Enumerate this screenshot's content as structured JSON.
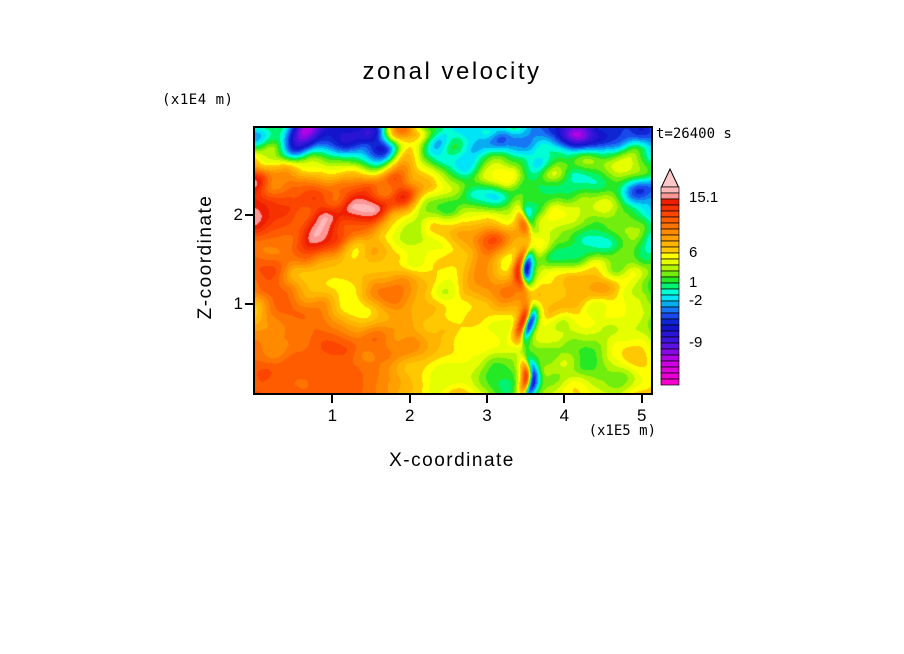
{
  "chart_data": {
    "type": "heatmap",
    "title": "zonal velocity",
    "annotation": "t=26400 s",
    "x_axis": {
      "label": "X-coordinate",
      "unit": "(x1E5 m)",
      "min": 0,
      "max": 5.12,
      "ticks": [
        1,
        2,
        3,
        4,
        5
      ]
    },
    "z_axis": {
      "label": "Z-coordinate",
      "unit": "(x1E4 m)",
      "min": 0,
      "max": 2.98,
      "ticks": [
        1,
        2
      ]
    },
    "colorbar": {
      "min": -16,
      "max": 17,
      "step": 1,
      "arrow": "up",
      "tick_labels": [
        {
          "value": 15.1,
          "label": "15.1"
        },
        {
          "value": 6,
          "label": "6"
        },
        {
          "value": 1,
          "label": "1"
        },
        {
          "value": -2,
          "label": "-2"
        },
        {
          "value": -9,
          "label": "-9"
        }
      ],
      "stops": [
        [
          -16,
          "#ff00c8"
        ],
        [
          -12,
          "#c800e6"
        ],
        [
          -9,
          "#4614e0"
        ],
        [
          -6,
          "#0a14c8"
        ],
        [
          -4,
          "#1e5af5"
        ],
        [
          -2,
          "#00c8f0"
        ],
        [
          -1,
          "#00ffff"
        ],
        [
          0,
          "#00ffaa"
        ],
        [
          1,
          "#00e632"
        ],
        [
          3,
          "#96f000"
        ],
        [
          4.5,
          "#e6ff00"
        ],
        [
          5.5,
          "#ffff00"
        ],
        [
          6.5,
          "#ffc800"
        ],
        [
          9,
          "#ff9600"
        ],
        [
          12,
          "#ff5000"
        ],
        [
          14.5,
          "#f01e00"
        ],
        [
          15.5,
          "#ff9696"
        ],
        [
          17,
          "#ffc8c8"
        ]
      ]
    },
    "field": {
      "description": "turbulent zonal velocity cross-section, procedurally regenerated to match the original texture",
      "seed": 11,
      "base_offset": 1.8,
      "octaves": [
        {
          "fx": 2.0,
          "fz": 1.5,
          "amp": 8.5,
          "rot": 0
        },
        {
          "fx": 4.6,
          "fz": 3.4,
          "amp": 7.5,
          "rot": 0.9
        },
        {
          "fx": 9.2,
          "fz": 6.6,
          "amp": 6.0,
          "rot": -0.7
        },
        {
          "fx": 18.5,
          "fz": 13.5,
          "amp": 3.6,
          "rot": 0.35
        }
      ],
      "turbulence_gradient": [
        0.45,
        1.3
      ],
      "calm_region": {
        "x": 0.16,
        "z": 0.2,
        "rx": 0.42,
        "rz": 0.33,
        "value": 3.2,
        "damp": 0.5
      },
      "jet": {
        "x": 0.685,
        "width": 0.016,
        "z_top": 0.55,
        "amp": 15,
        "wiggle": 0.01,
        "wiggle_freq": 24
      }
    }
  }
}
